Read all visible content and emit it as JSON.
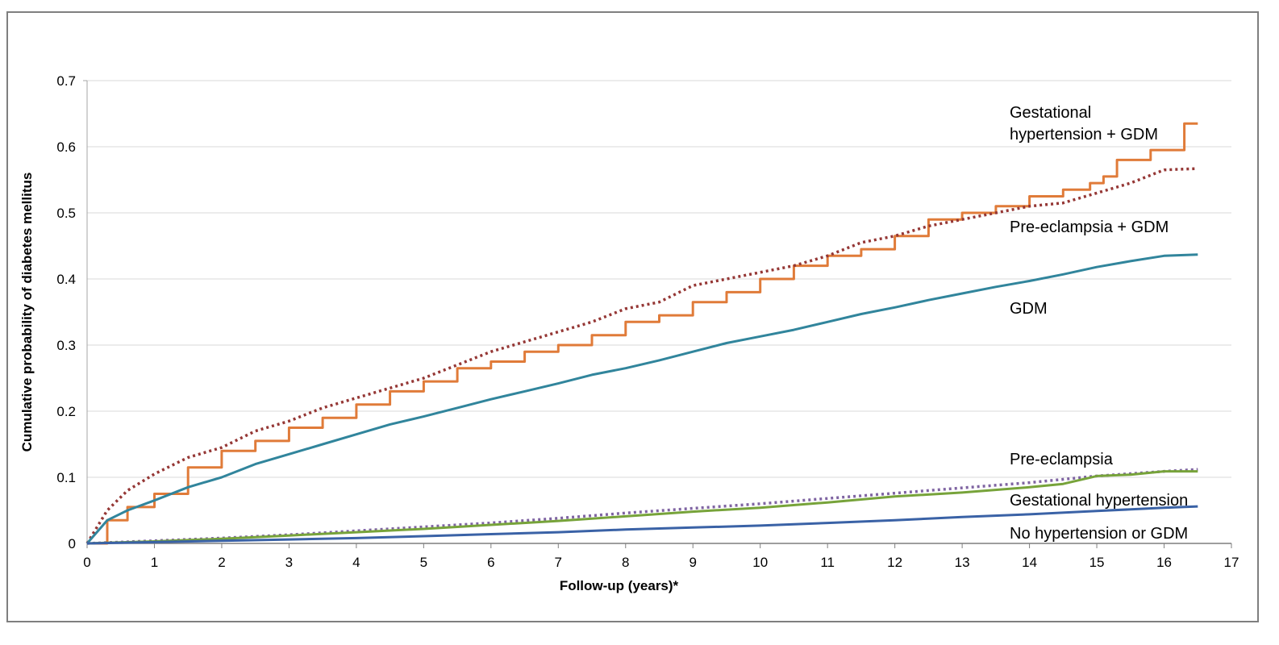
{
  "chart_data": {
    "type": "line",
    "title": "",
    "xlabel": "Follow-up (years)*",
    "ylabel": "Cumulative probability of diabetes mellitus",
    "xlim": [
      0,
      17
    ],
    "ylim": [
      0,
      0.7
    ],
    "x_ticks": [
      "0",
      "1",
      "2",
      "3",
      "4",
      "5",
      "6",
      "7",
      "8",
      "9",
      "10",
      "11",
      "12",
      "13",
      "14",
      "15",
      "16",
      "17"
    ],
    "y_ticks": [
      "0",
      "0.1",
      "0.2",
      "0.3",
      "0.4",
      "0.5",
      "0.6",
      "0.7"
    ],
    "grid": "horizontal",
    "legend": "inline labels at right end of lines",
    "series": [
      {
        "name": "Gestational hypertension + GDM",
        "label_lines": [
          "Gestational",
          "hypertension + GDM"
        ],
        "color": "#e07b39",
        "style": "solid",
        "step": true,
        "x": [
          0,
          0.3,
          0.6,
          1,
          1.5,
          2,
          2.5,
          3,
          3.5,
          4,
          4.5,
          5,
          5.5,
          6,
          6.5,
          7,
          7.5,
          8,
          8.5,
          9,
          9.5,
          10,
          10.5,
          11,
          11.5,
          12,
          12.5,
          13,
          13.5,
          14,
          14.5,
          14.9,
          15.1,
          15.3,
          15.8,
          16.3,
          16.5
        ],
        "y": [
          0,
          0.035,
          0.055,
          0.075,
          0.115,
          0.14,
          0.155,
          0.175,
          0.19,
          0.21,
          0.23,
          0.245,
          0.265,
          0.275,
          0.29,
          0.3,
          0.315,
          0.335,
          0.345,
          0.365,
          0.38,
          0.4,
          0.42,
          0.435,
          0.445,
          0.465,
          0.49,
          0.5,
          0.51,
          0.525,
          0.535,
          0.545,
          0.555,
          0.58,
          0.595,
          0.635,
          0.635
        ]
      },
      {
        "name": "Pre-eclampsia + GDM",
        "label_lines": [
          "Pre-eclampsia + GDM"
        ],
        "color": "#953735",
        "style": "dotted",
        "step": false,
        "x": [
          0,
          0.3,
          0.6,
          1,
          1.5,
          2,
          2.5,
          3,
          3.5,
          4,
          4.5,
          5,
          5.5,
          6,
          6.5,
          7,
          7.5,
          8,
          8.5,
          9,
          9.5,
          10,
          10.5,
          11,
          11.5,
          12,
          12.5,
          13,
          13.5,
          14,
          14.5,
          15,
          15.5,
          16,
          16.5
        ],
        "y": [
          0,
          0.05,
          0.08,
          0.105,
          0.13,
          0.145,
          0.17,
          0.185,
          0.205,
          0.22,
          0.235,
          0.25,
          0.27,
          0.29,
          0.305,
          0.32,
          0.335,
          0.355,
          0.365,
          0.39,
          0.4,
          0.41,
          0.42,
          0.435,
          0.455,
          0.465,
          0.48,
          0.49,
          0.5,
          0.51,
          0.515,
          0.53,
          0.545,
          0.565,
          0.567
        ]
      },
      {
        "name": "GDM",
        "label_lines": [
          "GDM"
        ],
        "color": "#31859c",
        "style": "solid",
        "step": false,
        "x": [
          0,
          0.3,
          0.6,
          1,
          1.5,
          2,
          2.5,
          3,
          3.5,
          4,
          4.5,
          5,
          5.5,
          6,
          6.5,
          7,
          7.5,
          8,
          8.5,
          9,
          9.5,
          10,
          10.5,
          11,
          11.5,
          12,
          12.5,
          13,
          13.5,
          14,
          14.5,
          15,
          15.5,
          16,
          16.5
        ],
        "y": [
          0,
          0.035,
          0.05,
          0.065,
          0.085,
          0.1,
          0.12,
          0.135,
          0.15,
          0.165,
          0.18,
          0.192,
          0.205,
          0.218,
          0.23,
          0.242,
          0.255,
          0.265,
          0.277,
          0.29,
          0.303,
          0.313,
          0.323,
          0.335,
          0.347,
          0.357,
          0.368,
          0.378,
          0.388,
          0.397,
          0.407,
          0.418,
          0.427,
          0.435,
          0.437
        ]
      },
      {
        "name": "Pre-eclampsia",
        "label_lines": [
          "Pre-eclampsia"
        ],
        "color": "#7f64a2",
        "style": "dotted",
        "step": false,
        "x": [
          0,
          1,
          2,
          3,
          4,
          5,
          6,
          7,
          8,
          9,
          10,
          11,
          12,
          13,
          14,
          15,
          16,
          16.5
        ],
        "y": [
          0,
          0.004,
          0.008,
          0.013,
          0.019,
          0.025,
          0.031,
          0.038,
          0.046,
          0.053,
          0.06,
          0.068,
          0.076,
          0.084,
          0.092,
          0.102,
          0.109,
          0.112
        ]
      },
      {
        "name": "Gestational hypertension",
        "label_lines": [
          "Gestational hypertension"
        ],
        "color": "#77a33a",
        "style": "solid",
        "step": false,
        "x": [
          0,
          1,
          2,
          3,
          4,
          5,
          6,
          7,
          8,
          9,
          10,
          11,
          12,
          13,
          14,
          14.5,
          15,
          15.5,
          16,
          16.5
        ],
        "y": [
          0,
          0.003,
          0.007,
          0.012,
          0.017,
          0.022,
          0.028,
          0.034,
          0.041,
          0.048,
          0.054,
          0.062,
          0.071,
          0.077,
          0.085,
          0.09,
          0.102,
          0.104,
          0.109,
          0.109
        ]
      },
      {
        "name": "No hypertension or GDM",
        "label_lines": [
          "No hypertension or GDM"
        ],
        "color": "#3a62a6",
        "style": "solid",
        "step": false,
        "x": [
          0,
          1,
          2,
          3,
          4,
          5,
          6,
          7,
          8,
          9,
          10,
          11,
          12,
          13,
          14,
          15,
          16,
          16.5
        ],
        "y": [
          0,
          0.002,
          0.004,
          0.006,
          0.008,
          0.011,
          0.014,
          0.017,
          0.021,
          0.024,
          0.027,
          0.031,
          0.035,
          0.04,
          0.044,
          0.049,
          0.054,
          0.056
        ]
      }
    ]
  }
}
